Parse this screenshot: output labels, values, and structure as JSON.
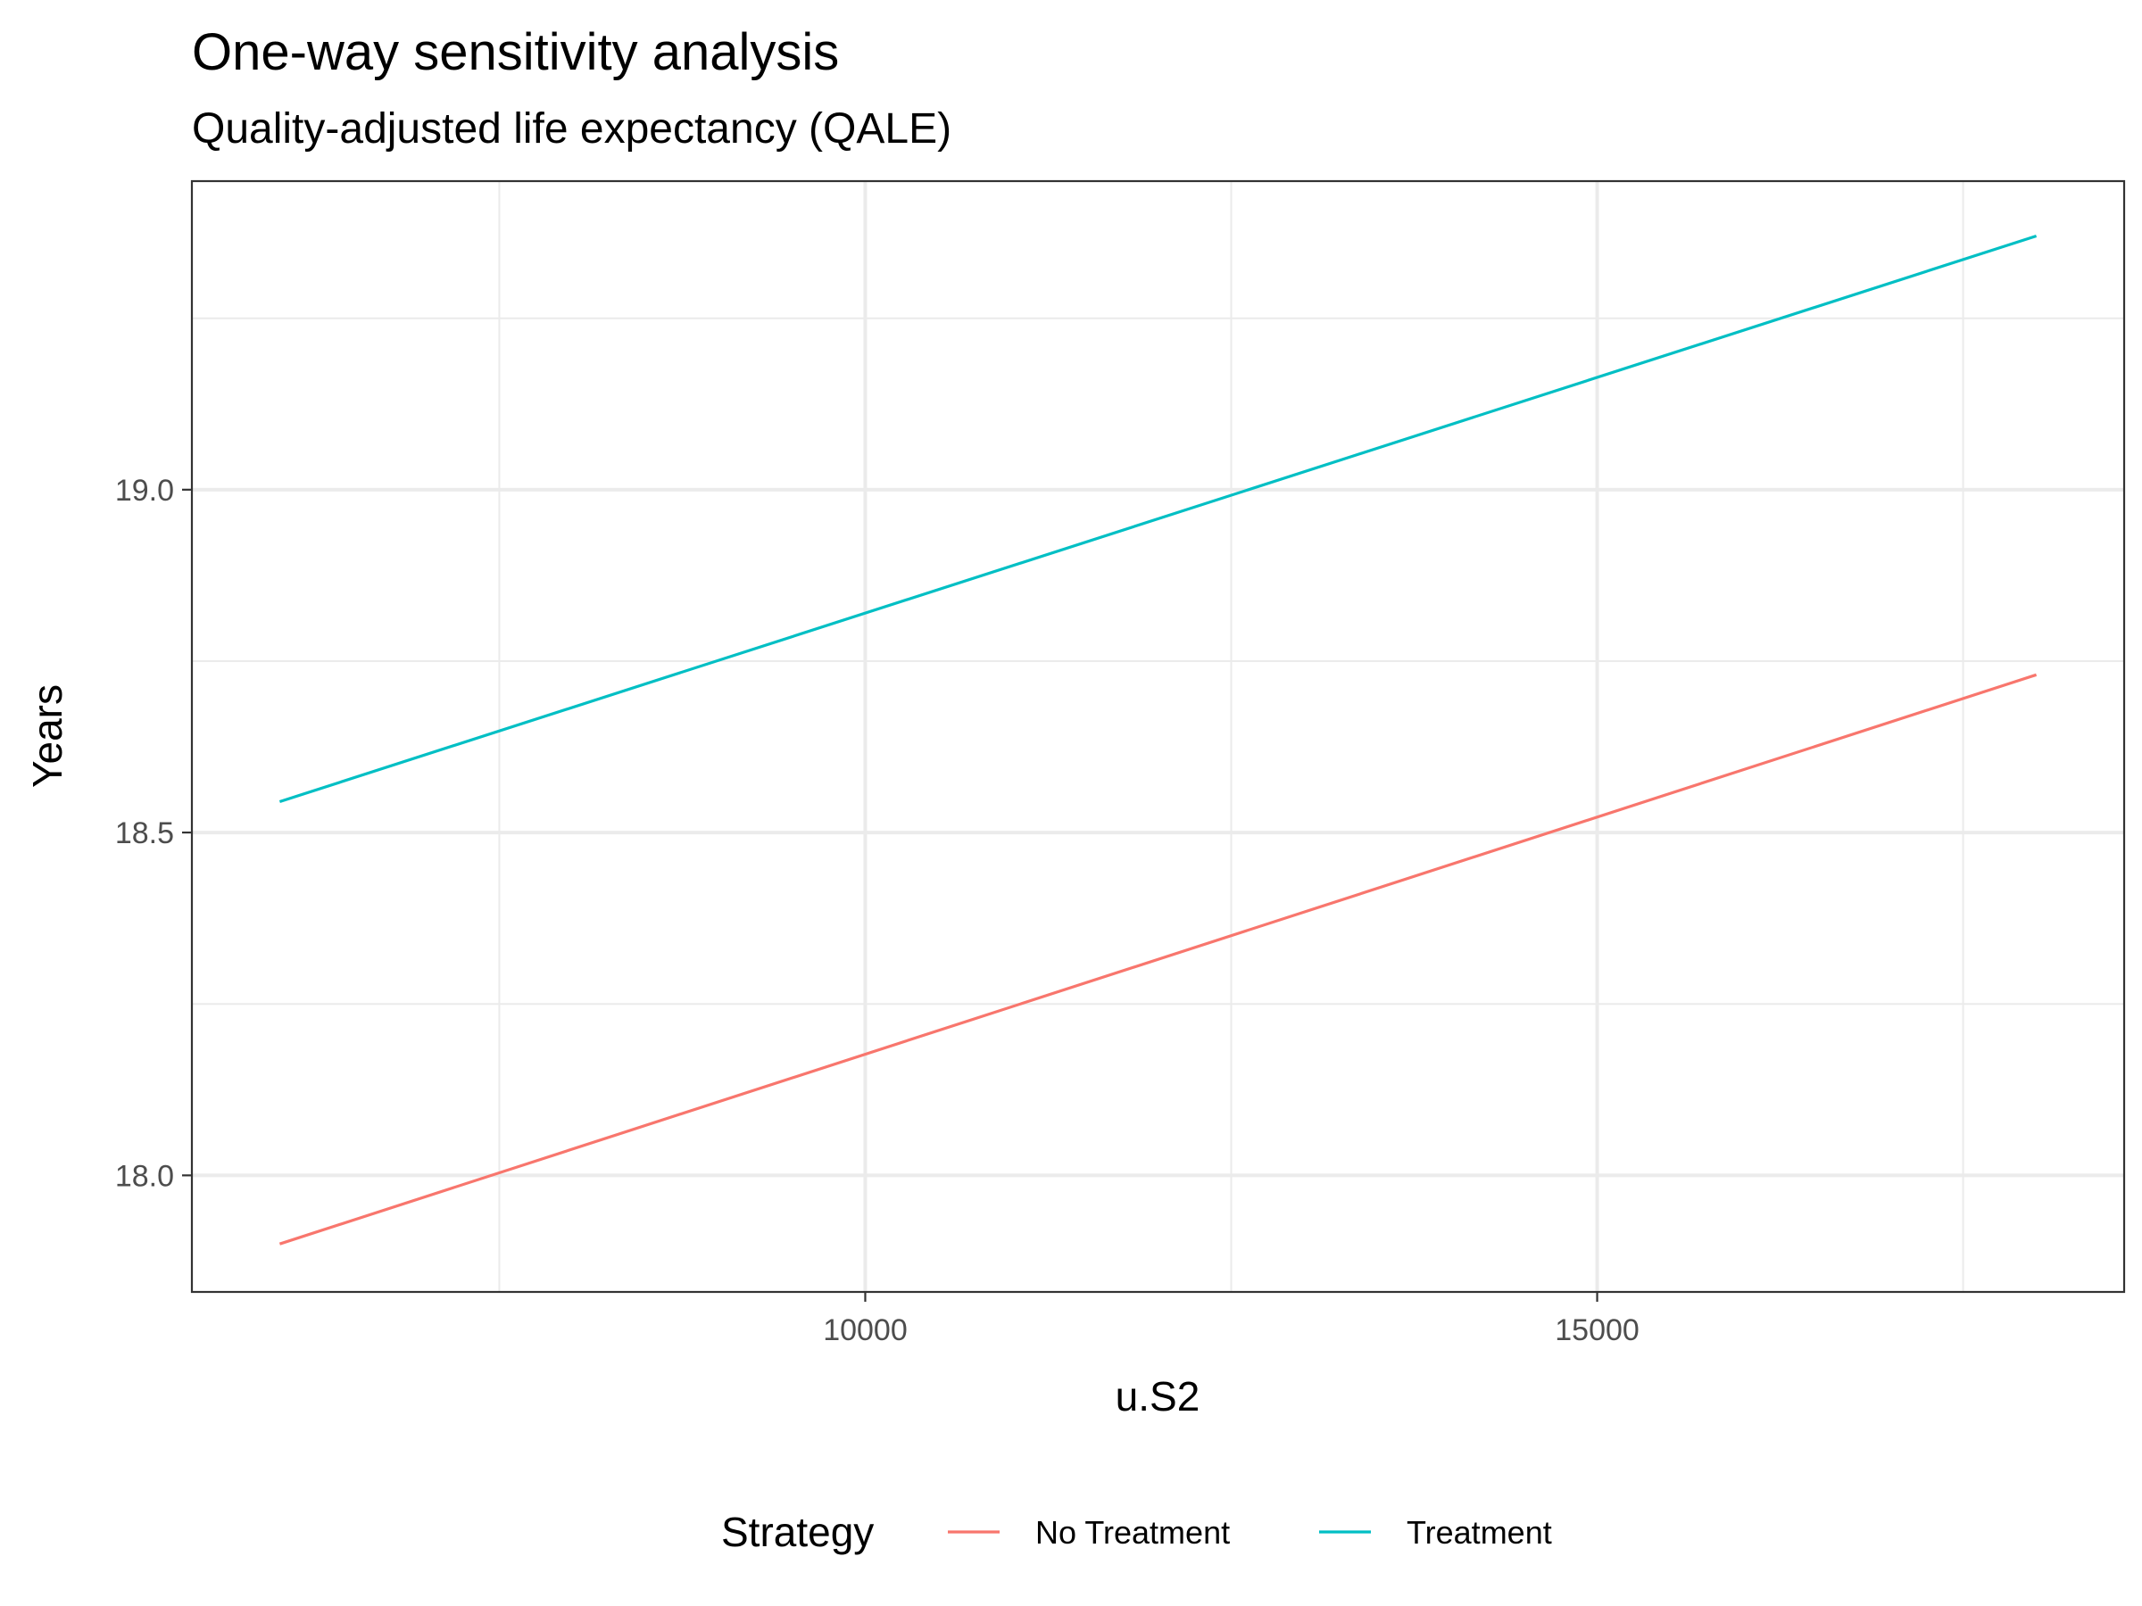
{
  "chart_data": {
    "type": "line",
    "title": "One-way sensitivity analysis",
    "subtitle": "Quality-adjusted life expectancy (QALE)",
    "xlabel": "u.S2",
    "ylabel": "Years",
    "xlim": [
      5400,
      18600
    ],
    "ylim": [
      17.83,
      19.45
    ],
    "x_ticks": [
      10000,
      15000
    ],
    "x_tick_labels": [
      "10000",
      "15000"
    ],
    "x_minor_ticks": [
      7500,
      12500,
      17500
    ],
    "y_ticks": [
      18.0,
      18.5,
      19.0
    ],
    "y_tick_labels": [
      "18.0",
      "18.5",
      "19.0"
    ],
    "y_minor_ticks": [
      18.25,
      18.75,
      19.25
    ],
    "grid": true,
    "legend_title": "Strategy",
    "legend_position": "bottom",
    "series": [
      {
        "name": "No Treatment",
        "color": "#F8766D",
        "x": [
          6000,
          18000
        ],
        "y": [
          17.9,
          18.73
        ]
      },
      {
        "name": "Treatment",
        "color": "#00BFC4",
        "x": [
          6000,
          18000
        ],
        "y": [
          18.545,
          19.37
        ]
      }
    ]
  }
}
